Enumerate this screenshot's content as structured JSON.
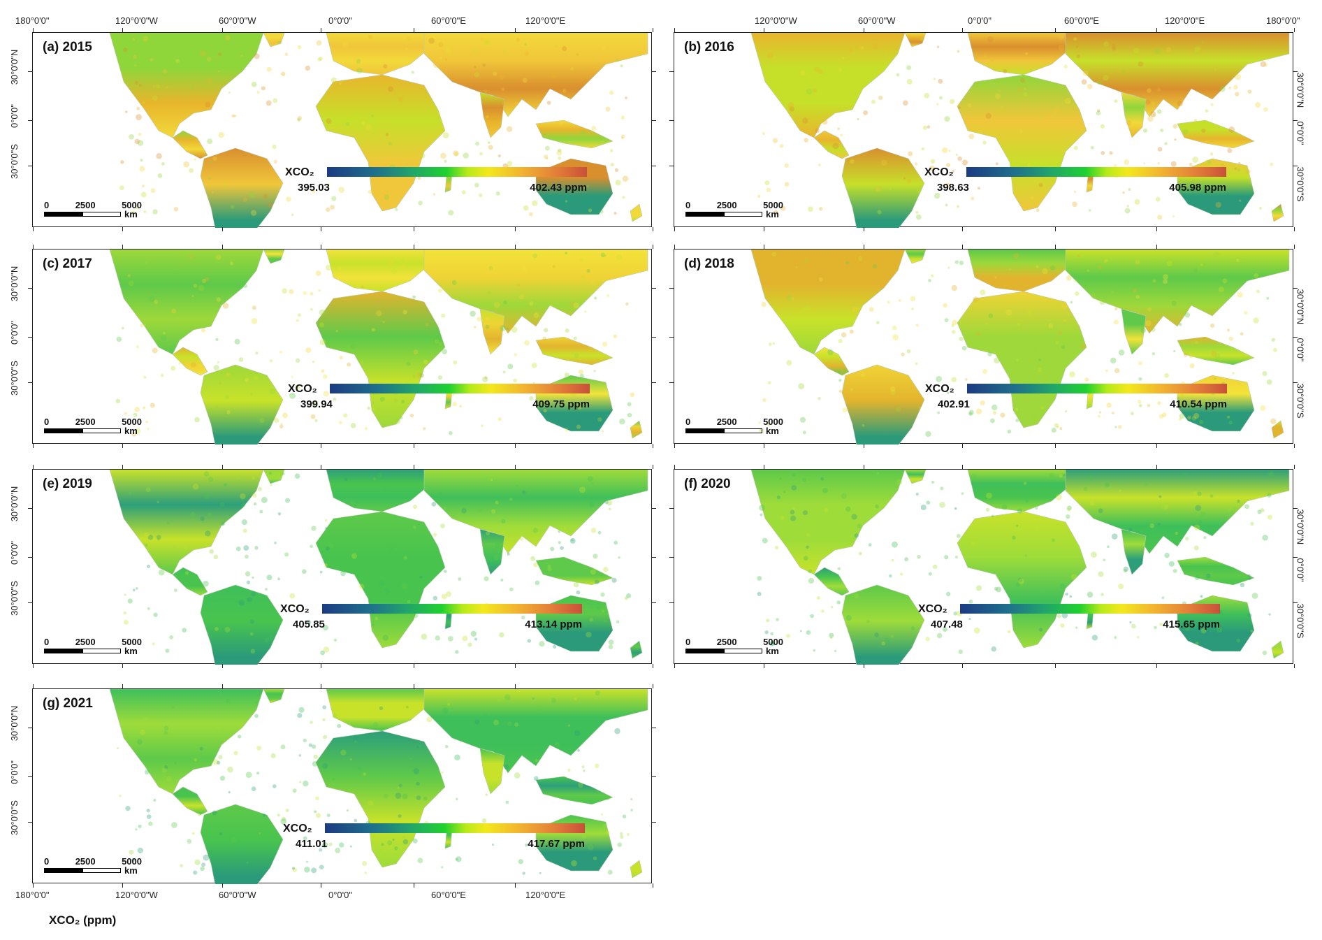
{
  "figure_label": "XCO₂ (ppm)",
  "legend_label": "XCO₂",
  "scale": {
    "n0": "0",
    "n1": "2500",
    "n2": "5000",
    "unit": "km"
  },
  "lon_labels": [
    "180°0'0\"",
    "120°0'0\"W",
    "60°0'0\"W",
    "0°0'0\"",
    "60°0'0\"E",
    "120°0'0\"E",
    "180°0'0\""
  ],
  "lat_labels": [
    "30°0'0\"N",
    "0°0'0\"",
    "30°0'0\"S"
  ],
  "panels": [
    {
      "title": "(a) 2015",
      "min": "395.03",
      "max": "402.43 ppm",
      "tone": "warm"
    },
    {
      "title": "(b) 2016",
      "min": "398.63",
      "max": "405.98 ppm",
      "tone": "warm"
    },
    {
      "title": "(c) 2017",
      "min": "399.94",
      "max": "409.75 ppm",
      "tone": "mixed"
    },
    {
      "title": "(d) 2018",
      "min": "402.91",
      "max": "410.54 ppm",
      "tone": "mixed"
    },
    {
      "title": "(e) 2019",
      "min": "405.85",
      "max": "413.14 ppm",
      "tone": "cool"
    },
    {
      "title": "(f) 2020",
      "min": "407.48",
      "max": "415.65 ppm",
      "tone": "cool"
    },
    {
      "title": "(g) 2021",
      "min": "411.01",
      "max": "417.67 ppm",
      "tone": "cool"
    }
  ]
}
